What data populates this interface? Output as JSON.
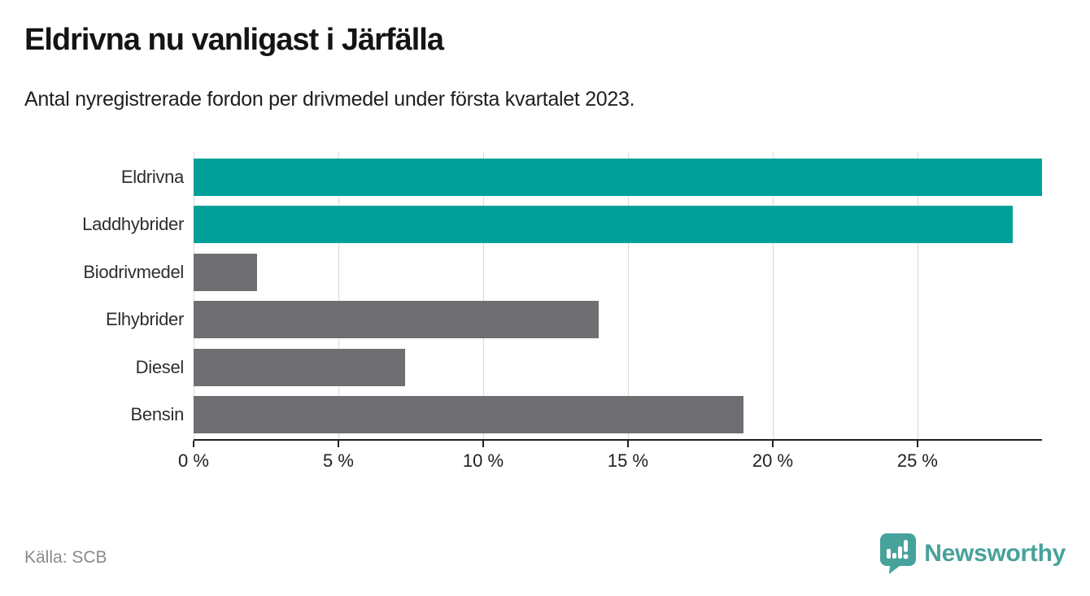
{
  "chart_data": {
    "type": "bar",
    "orientation": "horizontal",
    "title": "Eldrivna nu vanligast i Järfälla",
    "subtitle": "Antal nyregistrerade fordon per drivmedel under första kvartalet 2023.",
    "categories": [
      "Eldrivna",
      "Laddhybrider",
      "Biodrivmedel",
      "Elhybrider",
      "Diesel",
      "Bensin"
    ],
    "values": [
      29.3,
      28.3,
      2.2,
      14.0,
      7.3,
      19.0
    ],
    "unit": "%",
    "bar_colors": [
      "#00a099",
      "#00a099",
      "#6e6e73",
      "#6e6e73",
      "#6e6e73",
      "#6e6e73"
    ],
    "highlight_color": "#00a099",
    "default_color": "#6e6e73",
    "xlim": [
      0,
      29.3
    ],
    "ticks": [
      0,
      5,
      10,
      15,
      20,
      25
    ],
    "tick_labels": [
      "0 %",
      "5 %",
      "10 %",
      "15 %",
      "20 %",
      "25 %"
    ],
    "grid": true,
    "legend": "none"
  },
  "footer": {
    "source": "Källa: SCB",
    "brand": "Newsworthy"
  },
  "colors": {
    "axis": "#1f1f1f",
    "gridline": "#d9d9d9",
    "logo_teal": "#47a29b"
  }
}
